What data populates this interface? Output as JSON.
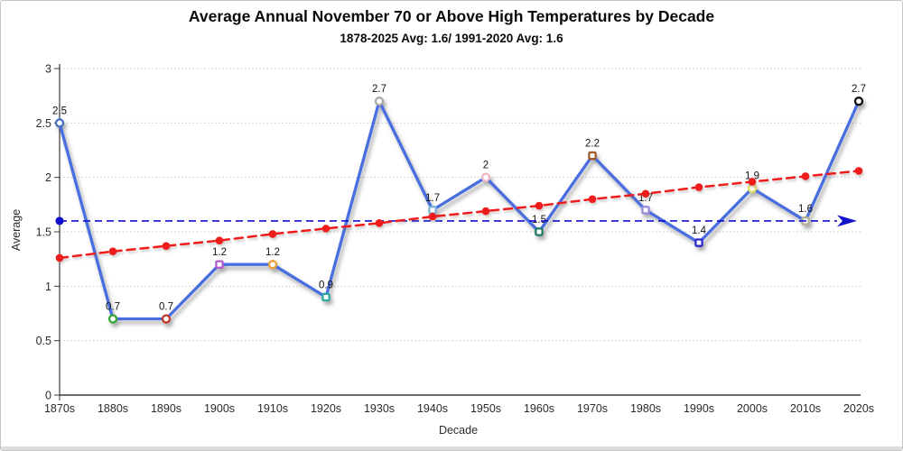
{
  "chart_data": {
    "type": "line",
    "title": "Average Annual November 70 or Above High Temperatures by Decade",
    "subtitle": "1878-2025 Avg: 1.6/ 1991-2020 Avg: 1.6",
    "xlabel": "Decade",
    "ylabel": "Average",
    "categories": [
      "1870s",
      "1880s",
      "1890s",
      "1900s",
      "1910s",
      "1920s",
      "1930s",
      "1940s",
      "1950s",
      "1960s",
      "1970s",
      "1980s",
      "1990s",
      "2000s",
      "2010s",
      "2020s"
    ],
    "ylim": [
      0,
      3
    ],
    "ytick_values": [
      0,
      0.5,
      1,
      1.5,
      2,
      2.5,
      3
    ],
    "ytick_labels": [
      "0",
      "0.5",
      "1",
      "1.5",
      "2",
      "2.5",
      "3"
    ],
    "grid": "dotted-horizontal",
    "legend": "none",
    "series": [
      {
        "name": "Average by decade",
        "style": "solid-line-with-markers",
        "color": "#4a6ee0",
        "values": [
          2.5,
          0.7,
          0.7,
          1.2,
          1.2,
          0.9,
          2.7,
          1.7,
          2,
          1.5,
          2.2,
          1.7,
          1.4,
          1.9,
          1.6,
          2.7
        ],
        "data_labels": [
          "2.5",
          "0.7",
          "0.7",
          "1.2",
          "1.2",
          "0.9",
          "2.7",
          "1.7",
          "2",
          "1.5",
          "2.2",
          "1.7",
          "1.4",
          "1.9",
          "1.6",
          "2.7"
        ],
        "marker_colors": [
          "#4472c4",
          "#35a835",
          "#c0392b",
          "#b05ccc",
          "#e8a13a",
          "#2fa89f",
          "#ababab",
          "#7fb2d9",
          "#f0b8c4",
          "#1f7a68",
          "#a05a2c",
          "#978cd8",
          "#2a2ace",
          "#e6e15e",
          "#b4ad98",
          "#111111"
        ],
        "marker_shapes": [
          "circle",
          "circle",
          "circle",
          "square",
          "circle",
          "square",
          "circle",
          "square",
          "circle",
          "square",
          "square",
          "square",
          "square",
          "circle",
          "square",
          "circle"
        ]
      },
      {
        "name": "Linear trend",
        "style": "dashed-line-with-markers",
        "color": "#ef1a1a",
        "values": [
          1.26,
          1.32,
          1.37,
          1.42,
          1.48,
          1.53,
          1.58,
          1.64,
          1.69,
          1.74,
          1.8,
          1.85,
          1.91,
          1.96,
          2.01,
          2.06
        ]
      },
      {
        "name": "1991-2020 average reference",
        "style": "horizontal-dashed-arrow",
        "color": "#1111cc",
        "value": 1.6
      }
    ]
  }
}
